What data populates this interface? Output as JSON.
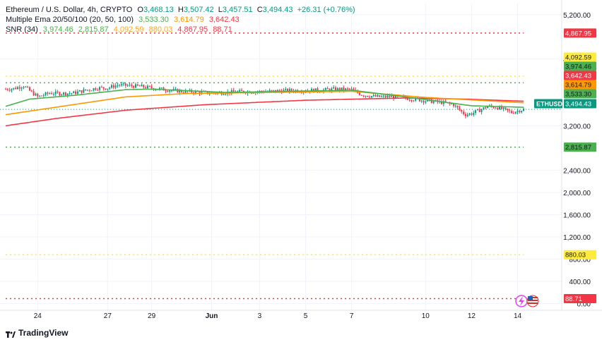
{
  "legend": {
    "symbol": "Ethereum / U.S. Dollar, 4h, CRYPTO",
    "o_label": "O",
    "o": "3,468.13",
    "h_label": "H",
    "h": "3,507.42",
    "l_label": "L",
    "l": "3,457.51",
    "c_label": "C",
    "c": "3,494.43",
    "change": "+26.31 (+0.76%)",
    "ema_name": "Multiple Ema 20/50/100 (20, 50, 100)",
    "ema20": "3,533.30",
    "ema50": "3,614.79",
    "ema100": "3,642.43",
    "snr_name": "SNR (34)",
    "snr_values": [
      "3,974.46",
      "2,815.87",
      "4,092.59",
      "880.03",
      "4,867.95",
      "88.71"
    ]
  },
  "footer": {
    "brand": "TradingView"
  },
  "colors": {
    "up": "#089981",
    "down": "#f23645",
    "ema20": "#4caf50",
    "ema50": "#ff9800",
    "ema100": "#f23645",
    "snr_green": "#4caf50",
    "snr_yellow": "#ffeb3b",
    "snr_red": "#f23645",
    "grid": "#f0f3fa",
    "axis_text": "#131722"
  },
  "icons": [
    "lightning-icon",
    "us-flag-icon"
  ],
  "chart_data": {
    "type": "candlestick",
    "title": "Ethereum / U.S. Dollar, 4h, CRYPTO",
    "symbol_tag": "ETHUSD",
    "y_ticks": [
      "5,200.00",
      "4,400.00",
      "3,200.00",
      "2,400.00",
      "2,000.00",
      "1,600.00",
      "1,200.00",
      "800.00",
      "400.00",
      "0.00"
    ],
    "y_tick_values": [
      5200,
      4400,
      3200,
      2400,
      2000,
      1600,
      1200,
      800,
      400,
      0
    ],
    "x_ticks": [
      "24",
      "27",
      "29",
      "Jun",
      "3",
      "5",
      "7",
      "10",
      "12",
      "14"
    ],
    "x_tick_index": [
      16,
      51,
      73,
      103,
      127,
      150,
      173,
      210,
      233,
      256
    ],
    "price_labels": [
      {
        "text": "4,867.95",
        "value": 4867.95,
        "style": "red"
      },
      {
        "text": "4,092.59",
        "value": 4092.59,
        "style": "yellow"
      },
      {
        "text": "3,974.46",
        "value": 3974.46,
        "style": "green"
      },
      {
        "text": "3,642.43",
        "value": 3642.43,
        "style": "red"
      },
      {
        "text": "3,614.79",
        "value": 3614.79,
        "style": "orange"
      },
      {
        "text": "3,533.30",
        "value": 3533.3,
        "style": "green"
      },
      {
        "text": "3,494.43",
        "value": 3494.43,
        "style": "last"
      },
      {
        "text": "2,815.87",
        "value": 2815.87,
        "style": "green"
      },
      {
        "text": "880.03",
        "value": 880.03,
        "style": "yellow"
      },
      {
        "text": "88.71",
        "value": 88.71,
        "style": "red"
      }
    ],
    "snr_levels": [
      {
        "value": 4867.95,
        "color": "red"
      },
      {
        "value": 4092.59,
        "color": "yellow"
      },
      {
        "value": 3974.46,
        "color": "green"
      },
      {
        "value": 2815.87,
        "color": "green"
      },
      {
        "value": 880.03,
        "color": "yellow"
      },
      {
        "value": 88.71,
        "color": "red"
      }
    ],
    "ylim": [
      -120,
      5400
    ],
    "bars": 260,
    "close_anchors": [
      [
        0,
        3860
      ],
      [
        4,
        3870
      ],
      [
        9,
        3920
      ],
      [
        12,
        3830
      ],
      [
        16,
        3720
      ],
      [
        22,
        3790
      ],
      [
        28,
        3780
      ],
      [
        34,
        3790
      ],
      [
        40,
        3840
      ],
      [
        46,
        3880
      ],
      [
        51,
        3880
      ],
      [
        56,
        3935
      ],
      [
        62,
        3920
      ],
      [
        68,
        3905
      ],
      [
        73,
        3880
      ],
      [
        80,
        3850
      ],
      [
        88,
        3820
      ],
      [
        96,
        3805
      ],
      [
        103,
        3790
      ],
      [
        110,
        3800
      ],
      [
        118,
        3815
      ],
      [
        127,
        3815
      ],
      [
        135,
        3825
      ],
      [
        143,
        3835
      ],
      [
        150,
        3835
      ],
      [
        158,
        3840
      ],
      [
        165,
        3860
      ],
      [
        173,
        3850
      ],
      [
        178,
        3760
      ],
      [
        186,
        3720
      ],
      [
        193,
        3725
      ],
      [
        200,
        3700
      ],
      [
        210,
        3650
      ],
      [
        218,
        3620
      ],
      [
        224,
        3580
      ],
      [
        228,
        3450
      ],
      [
        230,
        3400
      ],
      [
        233,
        3420
      ],
      [
        237,
        3480
      ],
      [
        241,
        3550
      ],
      [
        245,
        3540
      ],
      [
        250,
        3480
      ],
      [
        253,
        3440
      ],
      [
        256,
        3470
      ],
      [
        259,
        3494.43
      ]
    ],
    "ema20_anchors": [
      [
        0,
        3550
      ],
      [
        12,
        3680
      ],
      [
        35,
        3750
      ],
      [
        60,
        3850
      ],
      [
        73,
        3860
      ],
      [
        110,
        3800
      ],
      [
        173,
        3840
      ],
      [
        200,
        3720
      ],
      [
        233,
        3560
      ],
      [
        259,
        3533.3
      ]
    ],
    "ema50_anchors": [
      [
        0,
        3400
      ],
      [
        30,
        3560
      ],
      [
        60,
        3720
      ],
      [
        90,
        3780
      ],
      [
        173,
        3820
      ],
      [
        210,
        3710
      ],
      [
        259,
        3614.79
      ]
    ],
    "ema100_anchors": [
      [
        0,
        3200
      ],
      [
        25,
        3330
      ],
      [
        60,
        3480
      ],
      [
        100,
        3580
      ],
      [
        150,
        3660
      ],
      [
        200,
        3700
      ],
      [
        230,
        3680
      ],
      [
        259,
        3642.43
      ]
    ]
  }
}
